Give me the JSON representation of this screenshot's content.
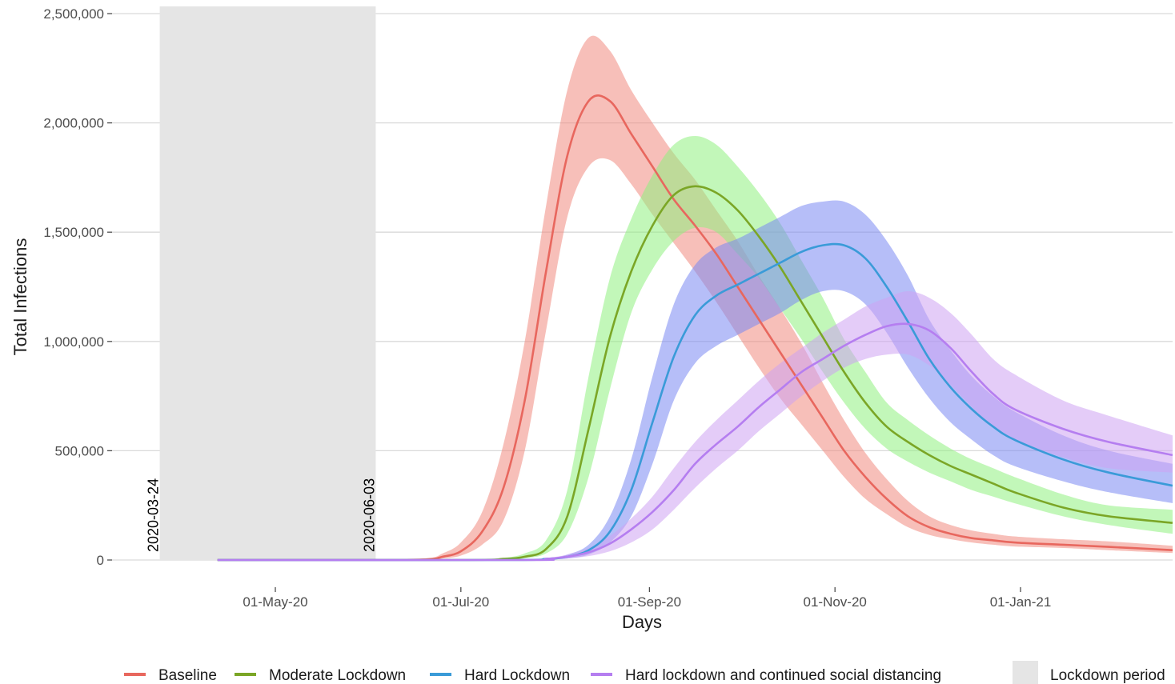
{
  "chart_data": {
    "type": "line",
    "title": "",
    "xlabel": "Days",
    "ylabel": "Total Infections",
    "x_ticks": [
      "01-May-20",
      "01-Jul-20",
      "01-Sep-20",
      "01-Nov-20",
      "01-Jan-21"
    ],
    "y_ticks": [
      "0",
      "500,000",
      "1,000,000",
      "1,500,000",
      "2,000,000",
      "2,500,000"
    ],
    "ylim": [
      0,
      2500000
    ],
    "xlim": [
      "2020-03-04",
      "2021-03-09"
    ],
    "grid": "horizontal",
    "legend_position": "bottom",
    "lockdown_period": {
      "start": "2020-03-24",
      "end": "2020-06-03",
      "start_label": "2020-03-24",
      "end_label": "2020-06-03",
      "legend_label": "Lockdown period",
      "color": "#e5e5e5"
    },
    "series": [
      {
        "name": "Baseline",
        "color": "#e8675e",
        "band_color": "#f08a80",
        "x": [
          "2020-04-12",
          "2020-06-03",
          "2020-06-20",
          "2020-06-25",
          "2020-07-01",
          "2020-07-08",
          "2020-07-15",
          "2020-07-22",
          "2020-07-29",
          "2020-08-05",
          "2020-08-12",
          "2020-08-19",
          "2020-08-26",
          "2020-09-02",
          "2020-09-09",
          "2020-09-16",
          "2020-09-23",
          "2020-09-30",
          "2020-10-07",
          "2020-10-14",
          "2020-10-21",
          "2020-10-28",
          "2020-11-04",
          "2020-11-11",
          "2020-11-18",
          "2020-11-25",
          "2020-12-02",
          "2020-12-09",
          "2020-12-16",
          "2020-12-23",
          "2020-12-30",
          "2021-01-15",
          "2021-01-30",
          "2021-02-20"
        ],
        "values": [
          0,
          0,
          3000,
          15000,
          40000,
          130000,
          330000,
          730000,
          1320000,
          1850000,
          2100000,
          2100000,
          1950000,
          1800000,
          1650000,
          1530000,
          1400000,
          1250000,
          1100000,
          950000,
          800000,
          650000,
          500000,
          380000,
          280000,
          200000,
          150000,
          120000,
          100000,
          90000,
          80000,
          70000,
          60000,
          45000
        ],
        "lower": [
          0,
          0,
          1000,
          7000,
          20000,
          70000,
          180000,
          500000,
          1050000,
          1570000,
          1800000,
          1830000,
          1720000,
          1580000,
          1450000,
          1320000,
          1180000,
          1030000,
          880000,
          740000,
          620000,
          500000,
          380000,
          280000,
          210000,
          150000,
          115000,
          95000,
          80000,
          70000,
          62000,
          55000,
          45000,
          32000
        ],
        "upper": [
          0,
          0,
          8000,
          30000,
          80000,
          220000,
          530000,
          1000000,
          1620000,
          2150000,
          2390000,
          2330000,
          2150000,
          2000000,
          1860000,
          1740000,
          1600000,
          1460000,
          1300000,
          1150000,
          990000,
          810000,
          640000,
          490000,
          370000,
          270000,
          200000,
          160000,
          135000,
          120000,
          108000,
          95000,
          85000,
          65000
        ]
      },
      {
        "name": "Moderate Lockdown",
        "color": "#7ba626",
        "band_color": "#8ff080",
        "x": [
          "2020-04-12",
          "2020-07-01",
          "2020-07-15",
          "2020-07-22",
          "2020-07-29",
          "2020-08-05",
          "2020-08-12",
          "2020-08-19",
          "2020-08-26",
          "2020-09-02",
          "2020-09-09",
          "2020-09-16",
          "2020-09-23",
          "2020-09-30",
          "2020-10-07",
          "2020-10-14",
          "2020-10-21",
          "2020-10-28",
          "2020-11-04",
          "2020-11-11",
          "2020-11-18",
          "2020-11-25",
          "2020-12-02",
          "2020-12-09",
          "2020-12-16",
          "2020-12-23",
          "2020-12-30",
          "2021-01-15",
          "2021-01-30",
          "2021-02-20"
        ],
        "values": [
          0,
          0,
          5000,
          15000,
          50000,
          200000,
          600000,
          1020000,
          1320000,
          1530000,
          1670000,
          1710000,
          1680000,
          1600000,
          1480000,
          1340000,
          1180000,
          1020000,
          860000,
          720000,
          610000,
          540000,
          480000,
          430000,
          390000,
          350000,
          310000,
          240000,
          200000,
          170000
        ],
        "lower": [
          0,
          0,
          2000,
          8000,
          30000,
          120000,
          380000,
          780000,
          1130000,
          1330000,
          1460000,
          1520000,
          1500000,
          1400000,
          1290000,
          1150000,
          1010000,
          860000,
          720000,
          600000,
          510000,
          450000,
          400000,
          360000,
          320000,
          290000,
          260000,
          200000,
          160000,
          120000
        ],
        "upper": [
          0,
          0,
          10000,
          30000,
          90000,
          320000,
          840000,
          1290000,
          1560000,
          1760000,
          1900000,
          1940000,
          1900000,
          1800000,
          1680000,
          1540000,
          1370000,
          1200000,
          1010000,
          860000,
          720000,
          640000,
          570000,
          510000,
          460000,
          420000,
          380000,
          300000,
          250000,
          230000
        ]
      },
      {
        "name": "Hard Lockdown",
        "color": "#3a9bd8",
        "band_color": "#7a88f2",
        "x": [
          "2020-04-12",
          "2020-07-15",
          "2020-07-29",
          "2020-08-05",
          "2020-08-12",
          "2020-08-19",
          "2020-08-26",
          "2020-09-02",
          "2020-09-09",
          "2020-09-16",
          "2020-09-23",
          "2020-09-30",
          "2020-10-07",
          "2020-10-14",
          "2020-10-21",
          "2020-10-28",
          "2020-11-04",
          "2020-11-11",
          "2020-11-18",
          "2020-11-25",
          "2020-12-02",
          "2020-12-09",
          "2020-12-16",
          "2020-12-23",
          "2020-12-30",
          "2021-01-15",
          "2021-01-30",
          "2021-02-20"
        ],
        "values": [
          0,
          0,
          5000,
          15000,
          45000,
          130000,
          320000,
          630000,
          930000,
          1120000,
          1210000,
          1260000,
          1310000,
          1360000,
          1410000,
          1440000,
          1440000,
          1380000,
          1250000,
          1090000,
          920000,
          790000,
          690000,
          610000,
          550000,
          460000,
          400000,
          340000
        ],
        "lower": [
          0,
          0,
          2000,
          7000,
          25000,
          80000,
          200000,
          440000,
          730000,
          900000,
          980000,
          1030000,
          1080000,
          1130000,
          1190000,
          1230000,
          1230000,
          1170000,
          1040000,
          880000,
          740000,
          630000,
          550000,
          480000,
          430000,
          360000,
          310000,
          260000
        ],
        "upper": [
          0,
          0,
          8000,
          25000,
          70000,
          200000,
          460000,
          840000,
          1170000,
          1350000,
          1430000,
          1470000,
          1520000,
          1570000,
          1620000,
          1640000,
          1640000,
          1580000,
          1460000,
          1300000,
          1100000,
          960000,
          840000,
          750000,
          680000,
          570000,
          500000,
          440000
        ]
      },
      {
        "name": "Hard lockdown and continued social distancing",
        "color": "#b57ef0",
        "band_color": "#cda2f2",
        "x": [
          "2020-04-12",
          "2020-07-22",
          "2020-07-29",
          "2020-08-05",
          "2020-08-12",
          "2020-08-19",
          "2020-08-26",
          "2020-09-02",
          "2020-09-09",
          "2020-09-16",
          "2020-09-23",
          "2020-09-30",
          "2020-10-07",
          "2020-10-14",
          "2020-10-21",
          "2020-10-28",
          "2020-11-04",
          "2020-11-11",
          "2020-11-18",
          "2020-11-25",
          "2020-12-02",
          "2020-12-09",
          "2020-12-16",
          "2020-12-23",
          "2020-12-30",
          "2021-01-15",
          "2021-01-30",
          "2021-02-20"
        ],
        "values": [
          0,
          0,
          5000,
          15000,
          35000,
          75000,
          140000,
          220000,
          320000,
          440000,
          530000,
          610000,
          700000,
          780000,
          860000,
          920000,
          980000,
          1030000,
          1070000,
          1080000,
          1050000,
          970000,
          860000,
          760000,
          690000,
          600000,
          540000,
          480000
        ],
        "lower": [
          0,
          0,
          2000,
          7000,
          18000,
          40000,
          80000,
          140000,
          230000,
          330000,
          420000,
          500000,
          590000,
          670000,
          750000,
          820000,
          880000,
          920000,
          940000,
          940000,
          890000,
          800000,
          700000,
          610000,
          550000,
          470000,
          420000,
          400000
        ],
        "upper": [
          0,
          0,
          8000,
          25000,
          55000,
          110000,
          190000,
          290000,
          420000,
          540000,
          640000,
          730000,
          820000,
          900000,
          970000,
          1040000,
          1100000,
          1160000,
          1200000,
          1230000,
          1200000,
          1130000,
          1030000,
          920000,
          850000,
          730000,
          660000,
          570000
        ]
      }
    ]
  }
}
